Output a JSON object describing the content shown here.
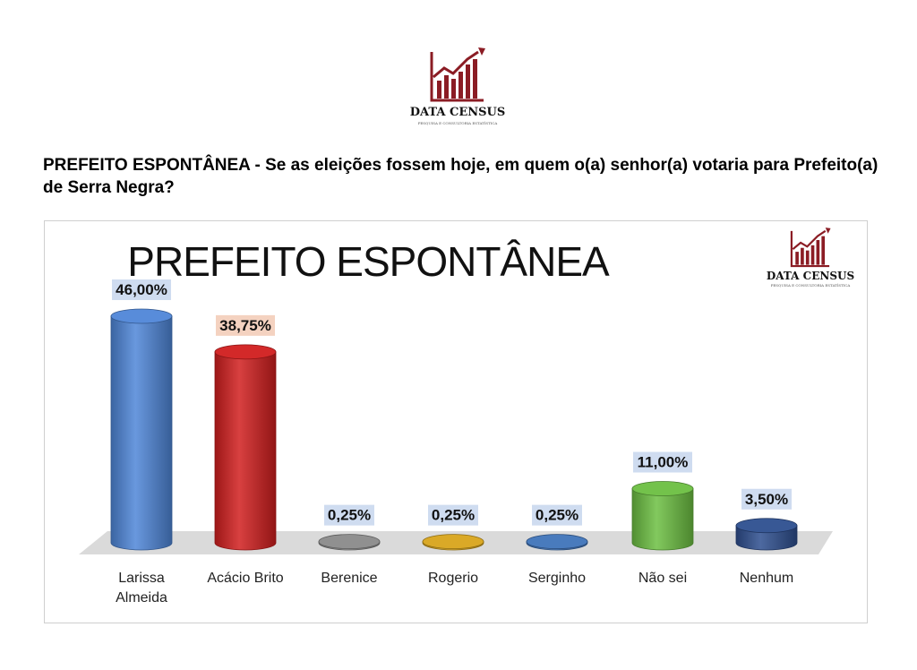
{
  "header": {
    "logo_name": "DATA CENSUS",
    "logo_tagline": "PESQUISA E CONSULTORIA ESTATÍSTICA",
    "question": "PREFEITO ESPONTÂNEA - Se as eleições fossem hoje, em quem o(a) senhor(a) votaria para Prefeito(a) de Serra Negra?"
  },
  "colors": {
    "brand": "#8b1c24"
  },
  "chart_data": {
    "type": "bar",
    "title": "PREFEITO ESPONTÂNEA",
    "categories": [
      "Larissa Almeida",
      "Acácio Brito",
      "Berenice",
      "Rogerio",
      "Serginho",
      "Não sei",
      "Nenhum"
    ],
    "values": [
      46.0,
      38.75,
      0.25,
      0.25,
      0.25,
      11.0,
      3.5
    ],
    "value_labels": [
      "46,00%",
      "38,75%",
      "0,25%",
      "0,25%",
      "0,25%",
      "11,00%",
      "3,50%"
    ],
    "colors": [
      "#4f86d8",
      "#d11e1e",
      "#8a8a8a",
      "#d8a41c",
      "#3f74ba",
      "#6cbf42",
      "#2e4f8f"
    ],
    "xlabel": "",
    "ylabel": "",
    "ylim": [
      0,
      50
    ],
    "grid": false,
    "legend": "none"
  }
}
